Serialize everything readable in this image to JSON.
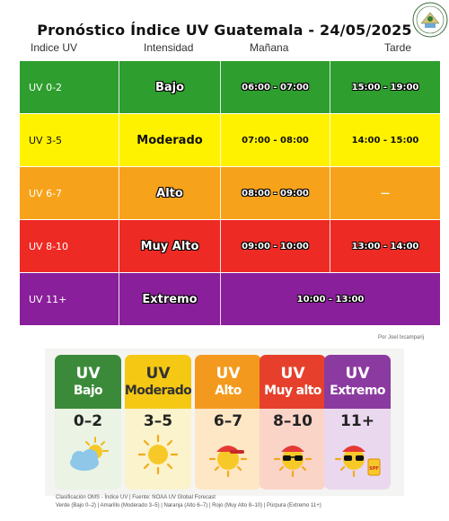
{
  "title": "Pronóstico Índice UV Guatemala - 24/05/2025",
  "headers": [
    "Indice UV",
    "Intensidad",
    "Mañana",
    "Tarde"
  ],
  "rows": [
    {
      "indice": "UV 0-2",
      "intensidad": "Bajo",
      "manana": "06:00 - 07:00",
      "tarde": "15:00 - 19:00",
      "color": "#2e9e2e"
    },
    {
      "indice": "UV 3-5",
      "intensidad": "Moderado",
      "manana": "07:00 - 08:00",
      "tarde": "14:00 - 15:00",
      "color": "#fff200"
    },
    {
      "indice": "UV 6-7",
      "intensidad": "Alto",
      "manana": "08:00 - 09:00",
      "tarde": "—",
      "color": "#f7a21b"
    },
    {
      "indice": "UV 8-10",
      "intensidad": "Muy Alto",
      "manana": "09:00 - 10:00",
      "tarde": "13:00 - 14:00",
      "color": "#ee2a24"
    },
    {
      "indice": "UV 11+",
      "intensidad": "Extremo",
      "manana_tarde": "10:00 - 13:00",
      "color": "#8a1f9b"
    }
  ],
  "credit": "Por Joel Ixcamparij",
  "cards": [
    {
      "uv": "UV",
      "level": "Bajo",
      "range": "0–2",
      "top": "#3b8a3a",
      "bottom": "#eaf3e4",
      "icon": "cloud-sun-icon"
    },
    {
      "uv": "UV",
      "level": "Moderado",
      "range": "3–5",
      "top": "#f5c814",
      "bottom": "#fbf3cc",
      "icon": "sun-icon"
    },
    {
      "uv": "UV",
      "level": "Alto",
      "range": "6–7",
      "top": "#f39a1e",
      "bottom": "#fde7c4",
      "icon": "sun-cap-icon"
    },
    {
      "uv": "UV",
      "level": "Muy alto",
      "range": "8–10",
      "top": "#e6402c",
      "bottom": "#fbd4c8",
      "icon": "sun-sunglasses-icon"
    },
    {
      "uv": "UV",
      "level": "Extremo",
      "range": "11+",
      "top": "#8b3aa0",
      "bottom": "#ead8ef",
      "icon": "sun-spf-icon"
    }
  ],
  "footer": [
    "Clasificación OMS - Índice UV | Fuente: NOAA UV Global Forecast",
    "Verde (Bajo 0–2) | Amarillo (Moderado 3–5) | Naranja (Alto 6–7) | Rojo (Muy Alto 8–10) | Púrpura (Extremo 11+)"
  ],
  "spf_label": "SPF"
}
